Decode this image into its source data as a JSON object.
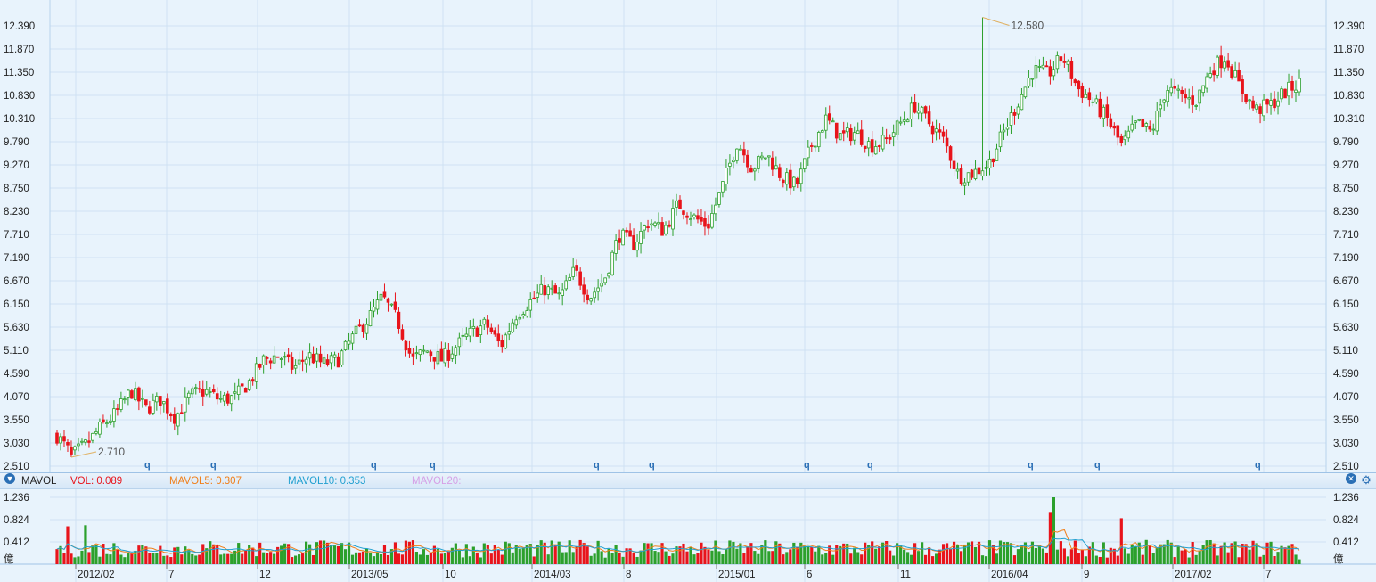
{
  "colors": {
    "up": "#2ca02c",
    "down": "#e8141b",
    "grid": "#cfe2f3",
    "bg": "#e8f3fc",
    "mavol5": "#f07f1a",
    "mavol10": "#22a0d0",
    "mavol20": "#d6a0e6"
  },
  "chart_data": [
    {
      "type": "candlestick",
      "y_ticks": [
        "12.390",
        "11.870",
        "11.350",
        "10.830",
        "10.310",
        "9.790",
        "9.270",
        "8.750",
        "8.230",
        "7.710",
        "7.190",
        "6.670",
        "6.150",
        "5.630",
        "5.110",
        "4.590",
        "4.070",
        "3.550",
        "3.030",
        "2.510"
      ],
      "ylim": [
        2.51,
        12.39
      ],
      "max_label": "12.580",
      "min_label": "2.710",
      "marker_label": "q",
      "grid": true,
      "price_path": [
        3.2,
        2.75,
        3.0,
        3.4,
        3.7,
        4.2,
        3.8,
        4.0,
        3.6,
        4.1,
        4.2,
        4.0,
        4.05,
        4.4,
        4.9,
        5.0,
        4.7,
        5.0,
        4.8,
        4.9,
        5.4,
        5.8,
        6.3,
        5.8,
        4.9,
        5.1,
        4.9,
        5.2,
        5.5,
        5.7,
        5.2,
        5.9,
        6.2,
        6.5,
        6.3,
        6.9,
        6.3,
        6.7,
        7.7,
        7.5,
        8.0,
        7.8,
        8.4,
        8.1,
        7.9,
        8.8,
        9.8,
        9.2,
        9.5,
        9.0,
        8.8,
        9.7,
        10.3,
        9.9,
        10.0,
        9.7,
        9.8,
        10.2,
        10.6,
        10.2,
        9.8,
        9.0,
        9.1,
        9.3,
        10.0,
        10.7,
        11.4,
        11.3,
        11.7,
        11.0,
        10.7,
        10.3,
        9.7,
        10.2,
        10.0,
        11.0,
        10.8,
        10.7,
        11.4,
        11.7,
        11.0,
        10.5,
        10.6,
        10.9,
        11.1
      ],
      "volume": {
        "y_ticks": [
          "1.236",
          "0.824",
          "0.412"
        ],
        "unit": "億",
        "ylim": [
          0,
          1.236
        ],
        "peak_value": 1.236
      },
      "x_tick_labels": [
        "2012/02",
        "7",
        "12",
        "2013/05",
        "10",
        "2014/03",
        "8",
        "2015/01",
        "6",
        "11",
        "2016/04",
        "9",
        "2017/02",
        "7"
      ]
    }
  ],
  "indicator_bar": {
    "name": "MAVOL",
    "vol": "VOL: 0.089",
    "mavol5": "MAVOL5: 0.307",
    "mavol10": "MAVOL10: 0.353",
    "mavol20": "MAVOL20:",
    "close_icon": "close-icon",
    "settings_icon": "gear-icon",
    "dropdown_icon": "chevron-down-icon"
  }
}
